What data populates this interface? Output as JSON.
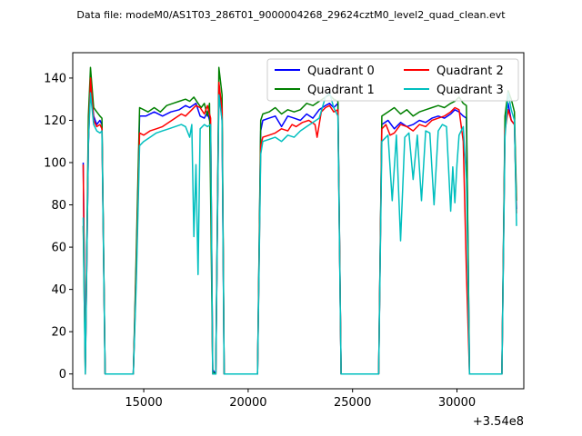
{
  "chart_data": {
    "type": "line",
    "title": "Data file: modeM0/AS1T03_286T01_9000004268_29624cztM0_level2_quad_clean.evt",
    "xlabel": "",
    "ylabel": "",
    "x_offset_label": "+3.54e8",
    "xlim": [
      11600,
      33200
    ],
    "ylim": [
      -7,
      152
    ],
    "xticks": [
      15000,
      20000,
      25000,
      30000
    ],
    "yticks": [
      0,
      20,
      40,
      60,
      80,
      100,
      120,
      140
    ],
    "grid": false,
    "legend": {
      "placement": "top-right",
      "columns": 2
    },
    "series": [
      {
        "name": "Quadrant 0",
        "color": "#0000ff",
        "points": [
          [
            12100,
            100
          ],
          [
            12200,
            3
          ],
          [
            12350,
            108
          ],
          [
            12450,
            138
          ],
          [
            12600,
            122
          ],
          [
            12750,
            118
          ],
          [
            12900,
            120
          ],
          [
            13000,
            118
          ],
          [
            13150,
            0
          ],
          [
            14500,
            0
          ],
          [
            14650,
            55
          ],
          [
            14800,
            122
          ],
          [
            15100,
            122
          ],
          [
            15500,
            124
          ],
          [
            15900,
            122
          ],
          [
            16300,
            124
          ],
          [
            16700,
            125
          ],
          [
            17000,
            127
          ],
          [
            17200,
            126
          ],
          [
            17500,
            128
          ],
          [
            17700,
            122
          ],
          [
            17900,
            121
          ],
          [
            18050,
            124
          ],
          [
            18200,
            118
          ],
          [
            18300,
            2
          ],
          [
            18450,
            0
          ],
          [
            18600,
            137
          ],
          [
            18750,
            120
          ],
          [
            18850,
            0
          ],
          [
            20450,
            0
          ],
          [
            20600,
            115
          ],
          [
            20700,
            120
          ],
          [
            21000,
            121
          ],
          [
            21300,
            122
          ],
          [
            21600,
            117
          ],
          [
            21900,
            122
          ],
          [
            22200,
            121
          ],
          [
            22500,
            120
          ],
          [
            22800,
            123
          ],
          [
            23100,
            121
          ],
          [
            23400,
            125
          ],
          [
            23700,
            127
          ],
          [
            23900,
            128
          ],
          [
            24100,
            126
          ],
          [
            24300,
            128
          ],
          [
            24450,
            0
          ],
          [
            26250,
            0
          ],
          [
            26400,
            118
          ],
          [
            26700,
            120
          ],
          [
            27000,
            116
          ],
          [
            27300,
            119
          ],
          [
            27600,
            117
          ],
          [
            27900,
            118
          ],
          [
            28200,
            120
          ],
          [
            28500,
            119
          ],
          [
            28800,
            121
          ],
          [
            29100,
            122
          ],
          [
            29400,
            121
          ],
          [
            29700,
            123
          ],
          [
            29900,
            125
          ],
          [
            30100,
            124
          ],
          [
            30300,
            122
          ],
          [
            30450,
            121
          ],
          [
            30600,
            0
          ],
          [
            32150,
            0
          ],
          [
            32300,
            118
          ],
          [
            32450,
            128
          ],
          [
            32600,
            120
          ],
          [
            32750,
            118
          ],
          [
            32850,
            78
          ]
        ]
      },
      {
        "name": "Quadrant 1",
        "color": "#008000",
        "points": [
          [
            12100,
            70
          ],
          [
            12200,
            2
          ],
          [
            12350,
            122
          ],
          [
            12450,
            145
          ],
          [
            12600,
            126
          ],
          [
            12750,
            124
          ],
          [
            12900,
            122
          ],
          [
            13000,
            121
          ],
          [
            13150,
            0
          ],
          [
            14500,
            0
          ],
          [
            14650,
            60
          ],
          [
            14800,
            126
          ],
          [
            15000,
            125
          ],
          [
            15200,
            124
          ],
          [
            15500,
            126
          ],
          [
            15800,
            124
          ],
          [
            16100,
            127
          ],
          [
            16400,
            128
          ],
          [
            16700,
            129
          ],
          [
            17000,
            130
          ],
          [
            17200,
            129
          ],
          [
            17400,
            131
          ],
          [
            17600,
            128
          ],
          [
            17750,
            126
          ],
          [
            17900,
            128
          ],
          [
            18050,
            122
          ],
          [
            18150,
            128
          ],
          [
            18300,
            1
          ],
          [
            18450,
            0
          ],
          [
            18600,
            145
          ],
          [
            18750,
            132
          ],
          [
            18850,
            0
          ],
          [
            20450,
            0
          ],
          [
            20600,
            120
          ],
          [
            20700,
            123
          ],
          [
            21000,
            124
          ],
          [
            21300,
            126
          ],
          [
            21600,
            123
          ],
          [
            21900,
            125
          ],
          [
            22200,
            124
          ],
          [
            22500,
            125
          ],
          [
            22800,
            128
          ],
          [
            23100,
            127
          ],
          [
            23400,
            129
          ],
          [
            23700,
            131
          ],
          [
            23900,
            132
          ],
          [
            24100,
            130
          ],
          [
            24300,
            129
          ],
          [
            24450,
            0
          ],
          [
            26250,
            0
          ],
          [
            26400,
            122
          ],
          [
            26700,
            124
          ],
          [
            27000,
            126
          ],
          [
            27300,
            123
          ],
          [
            27600,
            125
          ],
          [
            27900,
            122
          ],
          [
            28200,
            124
          ],
          [
            28500,
            125
          ],
          [
            28800,
            126
          ],
          [
            29100,
            127
          ],
          [
            29400,
            126
          ],
          [
            29700,
            128
          ],
          [
            29900,
            129
          ],
          [
            30100,
            131
          ],
          [
            30300,
            128
          ],
          [
            30450,
            127
          ],
          [
            30600,
            0
          ],
          [
            32150,
            0
          ],
          [
            32300,
            122
          ],
          [
            32450,
            134
          ],
          [
            32600,
            130
          ],
          [
            32750,
            124
          ],
          [
            32850,
            82
          ]
        ]
      },
      {
        "name": "Quadrant 2",
        "color": "#ff0000",
        "points": [
          [
            12100,
            99
          ],
          [
            12200,
            0
          ],
          [
            12350,
            110
          ],
          [
            12450,
            140
          ],
          [
            12600,
            120
          ],
          [
            12750,
            117
          ],
          [
            12900,
            118
          ],
          [
            13000,
            116
          ],
          [
            13150,
            0
          ],
          [
            14500,
            0
          ],
          [
            14650,
            50
          ],
          [
            14800,
            114
          ],
          [
            15000,
            113
          ],
          [
            15300,
            115
          ],
          [
            15600,
            116
          ],
          [
            15900,
            117
          ],
          [
            16200,
            119
          ],
          [
            16500,
            121
          ],
          [
            16800,
            123
          ],
          [
            17000,
            122
          ],
          [
            17200,
            124
          ],
          [
            17500,
            127
          ],
          [
            17700,
            126
          ],
          [
            17900,
            123
          ],
          [
            18050,
            127
          ],
          [
            18200,
            121
          ],
          [
            18300,
            0
          ],
          [
            18450,
            0
          ],
          [
            18600,
            138
          ],
          [
            18750,
            125
          ],
          [
            18850,
            0
          ],
          [
            20450,
            0
          ],
          [
            20600,
            108
          ],
          [
            20700,
            112
          ],
          [
            21000,
            113
          ],
          [
            21300,
            114
          ],
          [
            21600,
            116
          ],
          [
            21900,
            115
          ],
          [
            22100,
            118
          ],
          [
            22300,
            117
          ],
          [
            22600,
            119
          ],
          [
            22900,
            120
          ],
          [
            23200,
            118
          ],
          [
            23300,
            112
          ],
          [
            23500,
            124
          ],
          [
            23700,
            126
          ],
          [
            23900,
            127
          ],
          [
            24100,
            124
          ],
          [
            24300,
            125
          ],
          [
            24450,
            0
          ],
          [
            26250,
            0
          ],
          [
            26400,
            116
          ],
          [
            26600,
            118
          ],
          [
            26800,
            113
          ],
          [
            27000,
            114
          ],
          [
            27300,
            118
          ],
          [
            27600,
            117
          ],
          [
            27900,
            115
          ],
          [
            28200,
            118
          ],
          [
            28500,
            117
          ],
          [
            28800,
            120
          ],
          [
            29100,
            121
          ],
          [
            29400,
            122
          ],
          [
            29700,
            124
          ],
          [
            29900,
            126
          ],
          [
            30100,
            125
          ],
          [
            30300,
            110
          ],
          [
            30450,
            48
          ],
          [
            30600,
            0
          ],
          [
            32150,
            0
          ],
          [
            32300,
            115
          ],
          [
            32450,
            125
          ],
          [
            32600,
            120
          ],
          [
            32750,
            118
          ],
          [
            32850,
            76
          ]
        ]
      },
      {
        "name": "Quadrant 3",
        "color": "#00bfbf",
        "points": [
          [
            12100,
            74
          ],
          [
            12200,
            0
          ],
          [
            12350,
            110
          ],
          [
            12450,
            133
          ],
          [
            12600,
            118
          ],
          [
            12750,
            115
          ],
          [
            12900,
            114
          ],
          [
            13000,
            115
          ],
          [
            13150,
            0
          ],
          [
            14500,
            0
          ],
          [
            14650,
            45
          ],
          [
            14800,
            108
          ],
          [
            15000,
            110
          ],
          [
            15300,
            112
          ],
          [
            15600,
            114
          ],
          [
            15900,
            115
          ],
          [
            16200,
            116
          ],
          [
            16500,
            117
          ],
          [
            16800,
            118
          ],
          [
            17000,
            117
          ],
          [
            17200,
            112
          ],
          [
            17300,
            118
          ],
          [
            17400,
            65
          ],
          [
            17500,
            99
          ],
          [
            17600,
            47
          ],
          [
            17700,
            116
          ],
          [
            17900,
            118
          ],
          [
            18050,
            117
          ],
          [
            18200,
            118
          ],
          [
            18300,
            0
          ],
          [
            18450,
            0
          ],
          [
            18600,
            132
          ],
          [
            18750,
            120
          ],
          [
            18850,
            0
          ],
          [
            20450,
            0
          ],
          [
            20600,
            104
          ],
          [
            20700,
            110
          ],
          [
            21000,
            111
          ],
          [
            21300,
            112
          ],
          [
            21600,
            110
          ],
          [
            21900,
            113
          ],
          [
            22200,
            112
          ],
          [
            22500,
            115
          ],
          [
            22800,
            117
          ],
          [
            23100,
            119
          ],
          [
            23400,
            121
          ],
          [
            23700,
            131
          ],
          [
            23900,
            133
          ],
          [
            24100,
            126
          ],
          [
            24300,
            122
          ],
          [
            24450,
            0
          ],
          [
            26250,
            0
          ],
          [
            26400,
            110
          ],
          [
            26700,
            113
          ],
          [
            26900,
            82
          ],
          [
            27100,
            113
          ],
          [
            27300,
            63
          ],
          [
            27500,
            112
          ],
          [
            27700,
            114
          ],
          [
            27900,
            92
          ],
          [
            28100,
            113
          ],
          [
            28300,
            82
          ],
          [
            28500,
            115
          ],
          [
            28700,
            114
          ],
          [
            28900,
            80
          ],
          [
            29100,
            115
          ],
          [
            29300,
            118
          ],
          [
            29500,
            117
          ],
          [
            29700,
            77
          ],
          [
            29800,
            98
          ],
          [
            29900,
            81
          ],
          [
            30000,
            99
          ],
          [
            30100,
            113
          ],
          [
            30300,
            117
          ],
          [
            30450,
            92
          ],
          [
            30600,
            0
          ],
          [
            32150,
            0
          ],
          [
            32300,
            112
          ],
          [
            32450,
            133
          ],
          [
            32600,
            125
          ],
          [
            32750,
            120
          ],
          [
            32850,
            70
          ]
        ]
      }
    ]
  }
}
